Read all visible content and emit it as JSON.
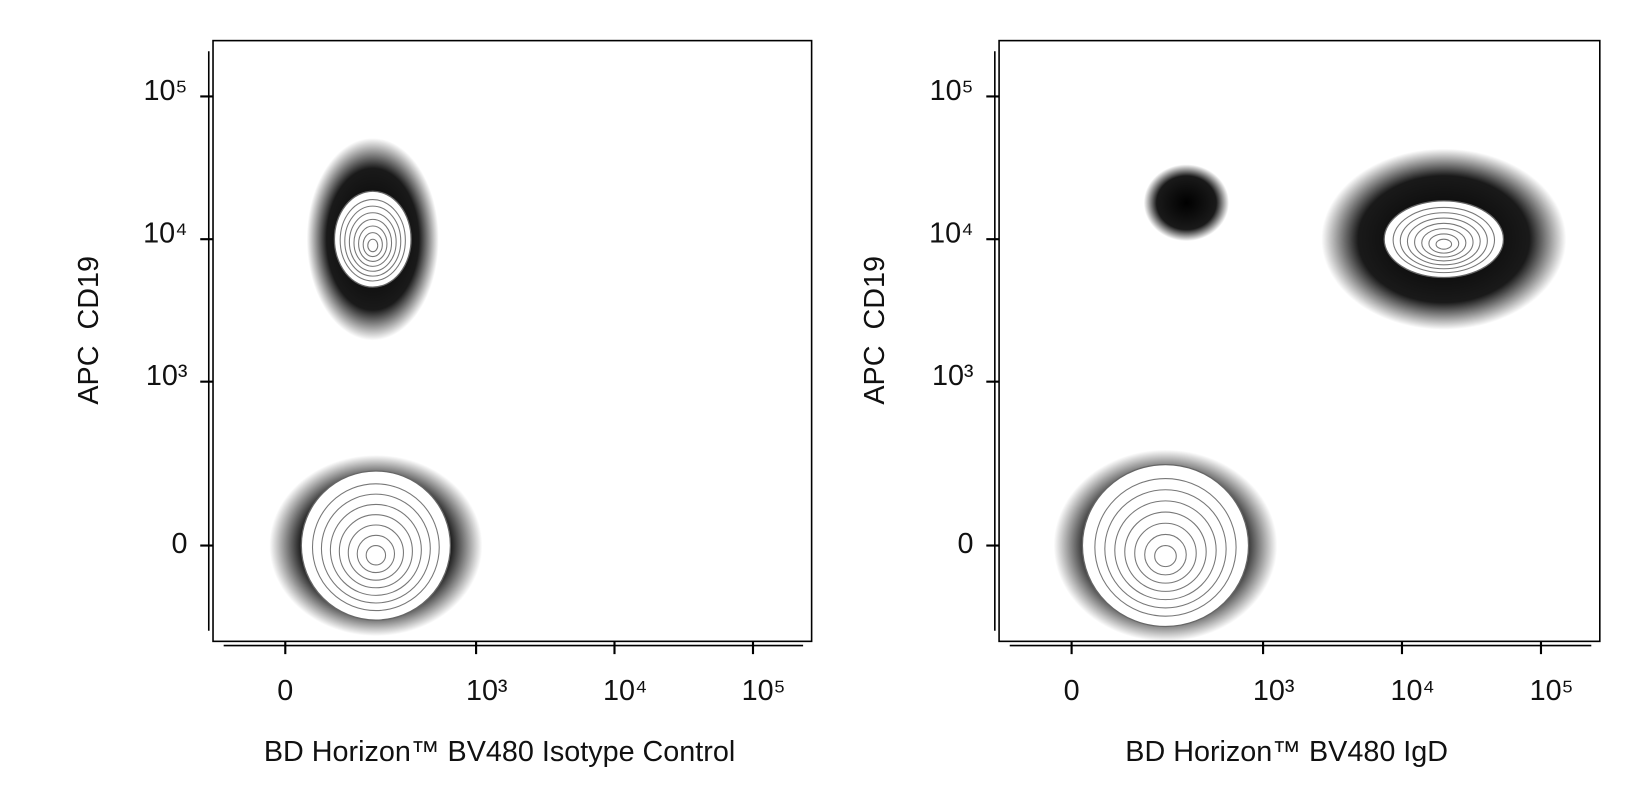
{
  "chart_data": [
    {
      "type": "contour",
      "xlabel": "BD Horizon™ BV480 Isotype Control",
      "ylabel": "APC  CD19",
      "x": [
        170,
        180
      ],
      "y": [
        10000,
        0
      ],
      "xlim": [
        -127,
        265000
      ],
      "ylim": [
        -320,
        246000
      ],
      "xticks": [
        0,
        {
          "value": 1000,
          "label": "10³"
        },
        {
          "value": 10000,
          "label": "10⁴"
        },
        {
          "value": 100000,
          "label": "10⁵"
        }
      ],
      "yticks": [
        0,
        {
          "value": 1000,
          "label": "10³"
        },
        {
          "value": 10000,
          "label": "10⁴"
        },
        {
          "value": 100000,
          "label": "10⁵"
        }
      ],
      "xscale": "biexponential",
      "yscale": "biexponential"
    },
    {
      "type": "contour",
      "xlabel": "BD Horizon™ BV480 IgD",
      "ylabel": "APC  CD19",
      "x": [
        275,
        20000,
        190
      ],
      "y": [
        18000,
        10000,
        0
      ],
      "xlim": [
        -127,
        265000
      ],
      "ylim": [
        -320,
        246000
      ],
      "xticks": [
        0,
        {
          "value": 1000,
          "label": "10³"
        },
        {
          "value": 10000,
          "label": "10⁴"
        },
        {
          "value": 100000,
          "label": "10⁵"
        }
      ],
      "yticks": [
        0,
        {
          "value": 1000,
          "label": "10³"
        },
        {
          "value": 10000,
          "label": "10⁴"
        },
        {
          "value": 100000,
          "label": "10⁵"
        }
      ],
      "xscale": "biexponential",
      "yscale": "biexponential"
    }
  ]
}
